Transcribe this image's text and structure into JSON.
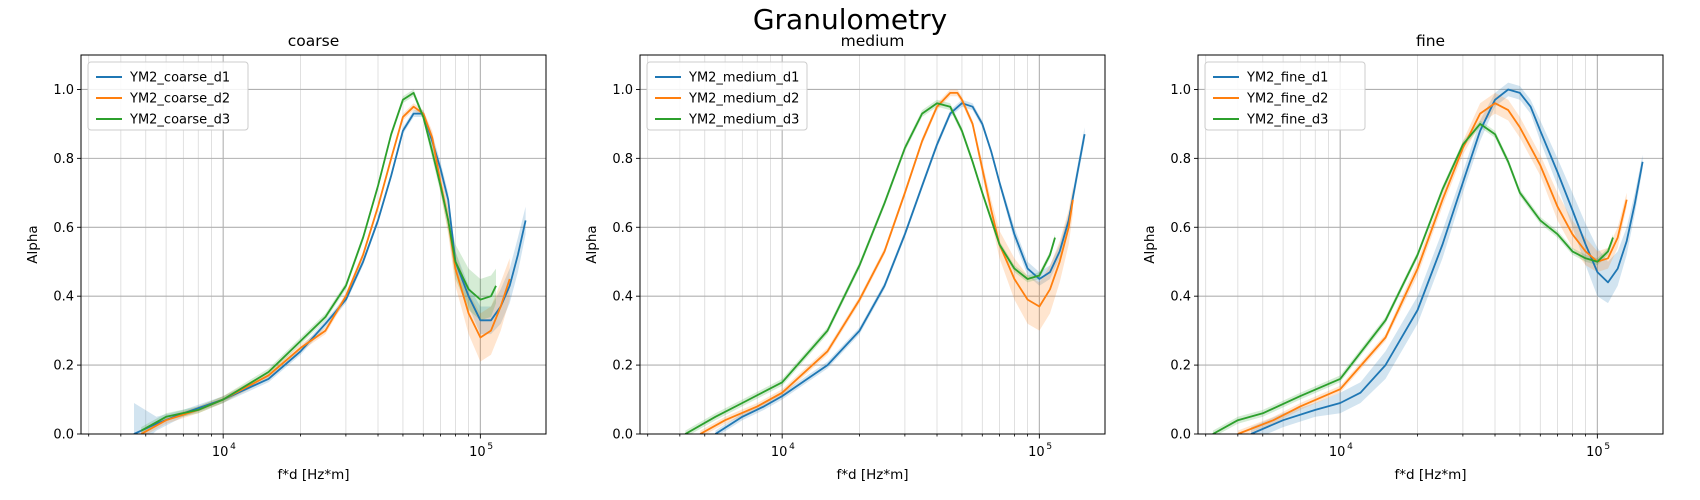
{
  "suptitle": "Granulometry",
  "colors": {
    "d1": "#1f77b4",
    "d2": "#ff7f0e",
    "d3": "#2ca02c",
    "grid": "#b0b0b0"
  },
  "chart_data": [
    {
      "type": "line",
      "title": "coarse",
      "xlabel": "f*d [Hz*m]",
      "ylabel": "Alpha",
      "xscale": "log",
      "xlim": [
        2800,
        180000
      ],
      "ylim": [
        0,
        1.1
      ],
      "xticks": [
        10000,
        100000
      ],
      "xtick_labels": [
        [
          "10",
          "4"
        ],
        [
          "10",
          "5"
        ]
      ],
      "yticks": [
        0,
        0.2,
        0.4,
        0.6,
        0.8,
        1.0
      ],
      "ytick_labels": [
        "0.0",
        "0.2",
        "0.4",
        "0.6",
        "0.8",
        "1.0"
      ],
      "grid": true,
      "legend": "upper-left",
      "series": [
        {
          "name": "YM2_coarse_d1",
          "color": "#1f77b4",
          "x": [
            4500,
            5500,
            7000,
            10000,
            15000,
            20000,
            25000,
            30000,
            35000,
            40000,
            45000,
            50000,
            55000,
            60000,
            65000,
            70000,
            75000,
            80000,
            90000,
            100000,
            110000,
            120000,
            130000,
            140000,
            150000
          ],
          "y": [
            0.0,
            0.03,
            0.06,
            0.1,
            0.16,
            0.24,
            0.32,
            0.39,
            0.5,
            0.62,
            0.75,
            0.88,
            0.93,
            0.93,
            0.85,
            0.77,
            0.68,
            0.5,
            0.4,
            0.33,
            0.33,
            0.37,
            0.43,
            0.52,
            0.62
          ],
          "band": [
            0.09,
            0.02,
            0.01,
            0.01,
            0.01,
            0.01,
            0.01,
            0.01,
            0.01,
            0.01,
            0.01,
            0.01,
            0.01,
            0.01,
            0.02,
            0.02,
            0.02,
            0.03,
            0.03,
            0.04,
            0.04,
            0.05,
            0.05,
            0.05,
            0.04
          ]
        },
        {
          "name": "YM2_coarse_d2",
          "color": "#ff7f0e",
          "x": [
            4800,
            6000,
            8000,
            10000,
            15000,
            20000,
            25000,
            30000,
            35000,
            40000,
            45000,
            50000,
            55000,
            60000,
            65000,
            70000,
            75000,
            80000,
            90000,
            100000,
            110000,
            120000,
            130000
          ],
          "y": [
            0.0,
            0.04,
            0.07,
            0.1,
            0.17,
            0.25,
            0.3,
            0.4,
            0.52,
            0.66,
            0.8,
            0.92,
            0.95,
            0.93,
            0.86,
            0.73,
            0.62,
            0.48,
            0.35,
            0.28,
            0.3,
            0.37,
            0.45
          ],
          "band": [
            0.01,
            0.01,
            0.01,
            0.01,
            0.01,
            0.01,
            0.01,
            0.01,
            0.01,
            0.01,
            0.01,
            0.01,
            0.01,
            0.01,
            0.02,
            0.03,
            0.04,
            0.05,
            0.06,
            0.07,
            0.07,
            0.07,
            0.06
          ]
        },
        {
          "name": "YM2_coarse_d3",
          "color": "#2ca02c",
          "x": [
            4800,
            6000,
            8000,
            10000,
            15000,
            20000,
            25000,
            30000,
            35000,
            40000,
            45000,
            50000,
            55000,
            60000,
            65000,
            70000,
            75000,
            80000,
            90000,
            100000,
            110000,
            115000
          ],
          "y": [
            0.01,
            0.05,
            0.07,
            0.1,
            0.18,
            0.27,
            0.34,
            0.43,
            0.57,
            0.72,
            0.87,
            0.97,
            0.99,
            0.92,
            0.82,
            0.72,
            0.62,
            0.5,
            0.42,
            0.39,
            0.4,
            0.43
          ],
          "band": [
            0.01,
            0.01,
            0.01,
            0.01,
            0.01,
            0.01,
            0.01,
            0.01,
            0.01,
            0.01,
            0.01,
            0.01,
            0.01,
            0.01,
            0.02,
            0.02,
            0.03,
            0.05,
            0.06,
            0.06,
            0.06,
            0.05
          ]
        }
      ]
    },
    {
      "type": "line",
      "title": "medium",
      "xlabel": "f*d [Hz*m]",
      "ylabel": "Alpha",
      "xscale": "log",
      "xlim": [
        2800,
        180000
      ],
      "ylim": [
        0,
        1.1
      ],
      "xticks": [
        10000,
        100000
      ],
      "xtick_labels": [
        [
          "10",
          "4"
        ],
        [
          "10",
          "5"
        ]
      ],
      "yticks": [
        0,
        0.2,
        0.4,
        0.6,
        0.8,
        1.0
      ],
      "ytick_labels": [
        "0.0",
        "0.2",
        "0.4",
        "0.6",
        "0.8",
        "1.0"
      ],
      "grid": true,
      "legend": "upper-left",
      "series": [
        {
          "name": "YM2_medium_d1",
          "color": "#1f77b4",
          "x": [
            5500,
            7000,
            8500,
            10000,
            15000,
            20000,
            25000,
            30000,
            35000,
            40000,
            45000,
            50000,
            55000,
            60000,
            65000,
            70000,
            80000,
            90000,
            100000,
            110000,
            120000,
            130000,
            140000,
            150000
          ],
          "y": [
            0.0,
            0.05,
            0.08,
            0.11,
            0.2,
            0.3,
            0.43,
            0.58,
            0.72,
            0.84,
            0.93,
            0.96,
            0.95,
            0.9,
            0.82,
            0.73,
            0.58,
            0.48,
            0.45,
            0.47,
            0.53,
            0.62,
            0.75,
            0.87
          ],
          "band": [
            0.01,
            0.01,
            0.01,
            0.01,
            0.01,
            0.01,
            0.01,
            0.01,
            0.01,
            0.01,
            0.01,
            0.01,
            0.01,
            0.01,
            0.01,
            0.01,
            0.02,
            0.02,
            0.02,
            0.02,
            0.02,
            0.02,
            0.02,
            0.02
          ]
        },
        {
          "name": "YM2_medium_d2",
          "color": "#ff7f0e",
          "x": [
            4800,
            6000,
            8000,
            10000,
            15000,
            20000,
            25000,
            30000,
            35000,
            40000,
            45000,
            48000,
            50000,
            55000,
            60000,
            65000,
            70000,
            80000,
            90000,
            100000,
            110000,
            120000,
            130000,
            135000
          ],
          "y": [
            0.0,
            0.04,
            0.08,
            0.12,
            0.24,
            0.39,
            0.53,
            0.7,
            0.85,
            0.95,
            0.99,
            0.99,
            0.97,
            0.9,
            0.77,
            0.65,
            0.55,
            0.45,
            0.39,
            0.37,
            0.42,
            0.5,
            0.6,
            0.68
          ],
          "band": [
            0.01,
            0.01,
            0.01,
            0.01,
            0.01,
            0.01,
            0.01,
            0.01,
            0.01,
            0.01,
            0.01,
            0.01,
            0.01,
            0.01,
            0.02,
            0.03,
            0.04,
            0.06,
            0.07,
            0.07,
            0.07,
            0.06,
            0.05,
            0.04
          ]
        },
        {
          "name": "YM2_medium_d3",
          "color": "#2ca02c",
          "x": [
            4200,
            5500,
            7000,
            10000,
            15000,
            20000,
            25000,
            30000,
            35000,
            40000,
            45000,
            50000,
            55000,
            60000,
            70000,
            80000,
            90000,
            100000,
            110000,
            115000
          ],
          "y": [
            0.0,
            0.05,
            0.09,
            0.15,
            0.3,
            0.49,
            0.67,
            0.83,
            0.93,
            0.96,
            0.95,
            0.88,
            0.79,
            0.7,
            0.55,
            0.48,
            0.45,
            0.46,
            0.52,
            0.57
          ],
          "band": [
            0.01,
            0.01,
            0.01,
            0.01,
            0.01,
            0.01,
            0.01,
            0.01,
            0.01,
            0.01,
            0.01,
            0.01,
            0.01,
            0.01,
            0.01,
            0.01,
            0.01,
            0.01,
            0.01,
            0.01
          ]
        }
      ]
    },
    {
      "type": "line",
      "title": "fine",
      "xlabel": "f*d [Hz*m]",
      "ylabel": "Alpha",
      "xscale": "log",
      "xlim": [
        2800,
        180000
      ],
      "ylim": [
        0,
        1.1
      ],
      "xticks": [
        10000,
        100000
      ],
      "xtick_labels": [
        [
          "10",
          "4"
        ],
        [
          "10",
          "5"
        ]
      ],
      "yticks": [
        0,
        0.2,
        0.4,
        0.6,
        0.8,
        1.0
      ],
      "ytick_labels": [
        "0.0",
        "0.2",
        "0.4",
        "0.6",
        "0.8",
        "1.0"
      ],
      "grid": true,
      "legend": "upper-left",
      "series": [
        {
          "name": "YM2_fine_d1",
          "color": "#1f77b4",
          "x": [
            4500,
            6000,
            8000,
            10000,
            12000,
            15000,
            20000,
            25000,
            30000,
            35000,
            40000,
            45000,
            50000,
            55000,
            60000,
            70000,
            80000,
            90000,
            100000,
            110000,
            120000,
            130000,
            140000,
            150000
          ],
          "y": [
            0.0,
            0.04,
            0.07,
            0.09,
            0.12,
            0.2,
            0.36,
            0.55,
            0.73,
            0.88,
            0.97,
            1.0,
            0.99,
            0.95,
            0.88,
            0.76,
            0.65,
            0.55,
            0.47,
            0.44,
            0.48,
            0.56,
            0.67,
            0.79
          ],
          "band": [
            0.02,
            0.02,
            0.02,
            0.03,
            0.03,
            0.04,
            0.04,
            0.04,
            0.03,
            0.03,
            0.02,
            0.02,
            0.02,
            0.02,
            0.03,
            0.04,
            0.05,
            0.06,
            0.07,
            0.06,
            0.05,
            0.04,
            0.03,
            0.02
          ]
        },
        {
          "name": "YM2_fine_d2",
          "color": "#ff7f0e",
          "x": [
            4000,
            5500,
            7000,
            10000,
            15000,
            20000,
            25000,
            30000,
            35000,
            40000,
            45000,
            50000,
            60000,
            70000,
            80000,
            90000,
            100000,
            110000,
            120000,
            130000
          ],
          "y": [
            0.0,
            0.04,
            0.08,
            0.13,
            0.28,
            0.48,
            0.68,
            0.83,
            0.93,
            0.96,
            0.94,
            0.89,
            0.78,
            0.66,
            0.58,
            0.53,
            0.5,
            0.51,
            0.57,
            0.68
          ],
          "band": [
            0.01,
            0.01,
            0.01,
            0.01,
            0.01,
            0.02,
            0.02,
            0.02,
            0.03,
            0.03,
            0.03,
            0.03,
            0.03,
            0.04,
            0.04,
            0.04,
            0.03,
            0.03,
            0.03,
            0.02
          ]
        },
        {
          "name": "YM2_fine_d3",
          "color": "#2ca02c",
          "x": [
            3200,
            4000,
            5000,
            7000,
            10000,
            15000,
            20000,
            25000,
            30000,
            35000,
            40000,
            45000,
            50000,
            60000,
            70000,
            80000,
            90000,
            100000,
            110000,
            115000
          ],
          "y": [
            0.0,
            0.04,
            0.06,
            0.11,
            0.16,
            0.33,
            0.52,
            0.71,
            0.84,
            0.9,
            0.87,
            0.79,
            0.7,
            0.62,
            0.58,
            0.53,
            0.51,
            0.5,
            0.53,
            0.57
          ],
          "band": [
            0.01,
            0.01,
            0.01,
            0.01,
            0.01,
            0.01,
            0.01,
            0.01,
            0.01,
            0.01,
            0.01,
            0.01,
            0.01,
            0.01,
            0.01,
            0.01,
            0.01,
            0.01,
            0.01,
            0.01
          ]
        }
      ]
    }
  ]
}
